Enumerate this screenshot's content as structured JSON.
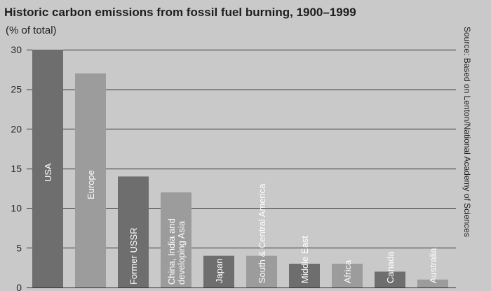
{
  "chart_data": {
    "type": "bar",
    "title": "Historic carbon emissions from fossil fuel burning, 1900–1999",
    "subtitle": "(% of total)",
    "source": "Source: Based on Lenton/National Academy of Sciences",
    "ylim": [
      0,
      30
    ],
    "yticks": [
      0,
      5,
      10,
      15,
      20,
      25,
      30
    ],
    "grid": true,
    "categories": [
      [
        "USA"
      ],
      [
        "Europe"
      ],
      [
        "Former USSR"
      ],
      [
        "China, India and",
        "developing Asia"
      ],
      [
        "Japan"
      ],
      [
        "South & Central America"
      ],
      [
        "Middle East"
      ],
      [
        "Africa"
      ],
      [
        "Canada"
      ],
      [
        "Australia"
      ]
    ],
    "values": [
      30,
      27,
      14,
      12,
      4,
      4,
      3,
      3,
      2,
      1
    ],
    "colors": {
      "dark": "#6e6e6e",
      "light": "#9c9c9c",
      "background": "#c9c9c9",
      "grid": "#303030"
    }
  }
}
